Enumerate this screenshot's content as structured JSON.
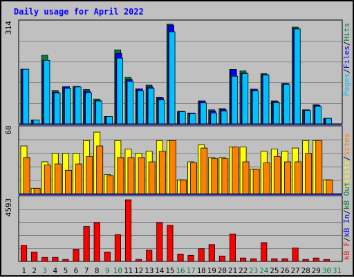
{
  "page": {
    "title": "Daily usage for April 2022"
  },
  "chart_data": [
    {
      "type": "bar",
      "panel": "top",
      "ytick_label": "314",
      "ylim": [
        0,
        314
      ],
      "legend": [
        {
          "label": "Pages",
          "color": "#00c0ff"
        },
        {
          "label": "Files",
          "color": "#0000ff"
        },
        {
          "label": "Hits",
          "color": "#008040"
        }
      ],
      "categories": [
        "1",
        "2",
        "3",
        "4",
        "5",
        "6",
        "7",
        "8",
        "9",
        "10",
        "11",
        "12",
        "13",
        "14",
        "15",
        "16",
        "17",
        "18",
        "19",
        "20",
        "21",
        "22",
        "23",
        "24",
        "25",
        "26",
        "27",
        "28",
        "29",
        "30",
        "31"
      ],
      "series": [
        {
          "name": "Hits",
          "values": [
            172,
            12,
            216,
            105,
            117,
            118,
            108,
            78,
            23,
            233,
            147,
            110,
            122,
            84,
            314,
            39,
            34,
            72,
            44,
            48,
            171,
            167,
            109,
            158,
            72,
            127,
            305,
            44,
            60,
            17,
            0
          ]
        },
        {
          "name": "Files",
          "values": [
            172,
            12,
            200,
            100,
            117,
            118,
            103,
            73,
            23,
            222,
            140,
            110,
            116,
            81,
            310,
            39,
            34,
            72,
            40,
            45,
            171,
            160,
            109,
            155,
            70,
            127,
            300,
            44,
            58,
            17,
            0
          ]
        },
        {
          "name": "Pages",
          "values": [
            172,
            12,
            200,
            97,
            112,
            116,
            98,
            72,
            23,
            207,
            134,
            104,
            112,
            75,
            290,
            38,
            32,
            66,
            34,
            40,
            150,
            158,
            104,
            154,
            67,
            124,
            299,
            42,
            55,
            17,
            0
          ]
        }
      ]
    },
    {
      "type": "bar",
      "panel": "middle",
      "ytick_label": "60",
      "ylim": [
        0,
        60
      ],
      "legend": [
        {
          "label": "Visits",
          "color": "#ffff00"
        },
        {
          "label": "Sites",
          "color": "#ff8000"
        }
      ],
      "categories": [
        "1",
        "2",
        "3",
        "4",
        "5",
        "6",
        "7",
        "8",
        "9",
        "10",
        "11",
        "12",
        "13",
        "14",
        "15",
        "16",
        "17",
        "18",
        "19",
        "20",
        "21",
        "22",
        "23",
        "24",
        "25",
        "26",
        "27",
        "28",
        "29",
        "30",
        "31"
      ],
      "series": [
        {
          "name": "Visits",
          "values": [
            45,
            5,
            30,
            38,
            38,
            38,
            50,
            58,
            18,
            50,
            42,
            38,
            40,
            50,
            50,
            13,
            30,
            46,
            34,
            34,
            44,
            44,
            23,
            40,
            42,
            40,
            43,
            50,
            50,
            13,
            0
          ]
        },
        {
          "name": "Sites",
          "values": [
            34,
            5,
            27,
            28,
            22,
            28,
            35,
            45,
            17,
            34,
            34,
            34,
            30,
            40,
            50,
            13,
            29,
            43,
            33,
            33,
            44,
            30,
            23,
            29,
            35,
            30,
            30,
            38,
            50,
            13,
            0
          ]
        }
      ]
    },
    {
      "type": "bar",
      "panel": "bottom",
      "ytick_label": "4593",
      "ylim": [
        0,
        4593
      ],
      "legend": [
        {
          "label": "kB F",
          "color": "#ff0000"
        },
        {
          "label": "kB In",
          "color": "#0000ff"
        },
        {
          "label": "kB Out",
          "color": "#008040"
        }
      ],
      "categories": [
        "1",
        "2",
        "3",
        "4",
        "5",
        "6",
        "7",
        "8",
        "9",
        "10",
        "11",
        "12",
        "13",
        "14",
        "15",
        "16",
        "17",
        "18",
        "19",
        "20",
        "21",
        "22",
        "23",
        "24",
        "25",
        "26",
        "27",
        "28",
        "29",
        "30",
        "31"
      ],
      "series": [
        {
          "name": "kB F",
          "values": [
            1200,
            700,
            300,
            300,
            150,
            900,
            2600,
            2900,
            700,
            2000,
            4593,
            150,
            850,
            2900,
            2700,
            550,
            450,
            950,
            1250,
            400,
            2050,
            250,
            200,
            1400,
            200,
            200,
            1000,
            150,
            250,
            150,
            0
          ]
        }
      ]
    }
  ],
  "x_tick_colors": [
    "#000000",
    "#000000",
    "#008040",
    "#000000",
    "#000000",
    "#000000",
    "#000000",
    "#000000",
    "#008040",
    "#008040",
    "#000000",
    "#000000",
    "#000000",
    "#000000",
    "#000000",
    "#008040",
    "#008040",
    "#000000",
    "#000000",
    "#000000",
    "#000000",
    "#000000",
    "#008040",
    "#008040",
    "#000000",
    "#000000",
    "#000000",
    "#000000",
    "#000000",
    "#008040",
    "#008040"
  ],
  "colors": {
    "title": "#0000ff",
    "panel_bg": "#c0c0c0",
    "grid": "#808080",
    "separator": "#0000ff",
    "hits": "#008040",
    "files": "#0000ff",
    "pages": "#00c0ff",
    "visits": "#ffff00",
    "sites": "#ff8000",
    "kbf": "#ff0000"
  }
}
